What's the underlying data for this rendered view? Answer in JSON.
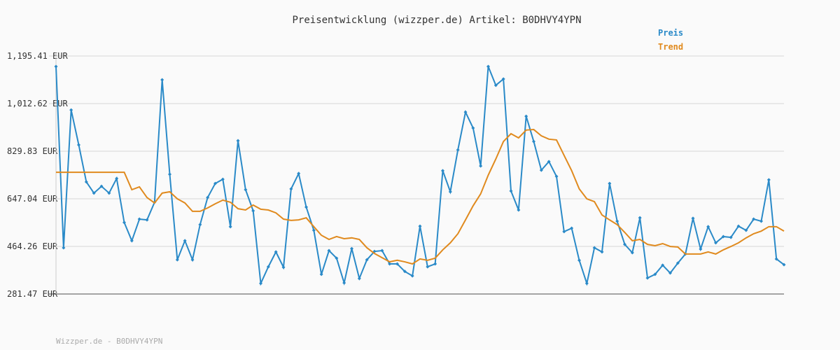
{
  "chart_data": {
    "type": "line",
    "title": "Preisentwicklung (wizzper.de) Artikel: B0DHVY4YPN",
    "footer": "Wizzper.de - B0DHVY4YPN",
    "legend": "top-right",
    "grid": true,
    "ylim": [
      281.47,
      1195.41
    ],
    "yticks": [
      {
        "value": 281.47,
        "label": "281.47 EUR"
      },
      {
        "value": 464.26,
        "label": "464.26 EUR"
      },
      {
        "value": 647.04,
        "label": "647.04 EUR"
      },
      {
        "value": 829.83,
        "label": "829.83 EUR"
      },
      {
        "value": 1012.62,
        "label": "1,012.62 EUR"
      },
      {
        "value": 1195.41,
        "label": "1,195.41 EUR"
      }
    ],
    "series": [
      {
        "name": "Preis",
        "color": "#2a8ac8",
        "markers": true,
        "values": [
          1155,
          459,
          988,
          854,
          712,
          669,
          695,
          669,
          725,
          556,
          486,
          569,
          566,
          634,
          1104,
          741,
          413,
          486,
          413,
          548,
          652,
          706,
          722,
          540,
          870,
          682,
          601,
          322,
          386,
          443,
          384,
          685,
          744,
          615,
          526,
          357,
          448,
          419,
          324,
          456,
          341,
          413,
          445,
          448,
          397,
          397,
          368,
          351,
          542,
          386,
          397,
          755,
          674,
          835,
          980,
          919,
          773,
          1155,
          1083,
          1107,
          677,
          604,
          964,
          867,
          757,
          790,
          733,
          521,
          534,
          411,
          322,
          459,
          443,
          706,
          561,
          472,
          440,
          574,
          343,
          357,
          392,
          362,
          400,
          435,
          572,
          454,
          540,
          478,
          502,
          499,
          542,
          526,
          569,
          561,
          720,
          416,
          394
        ]
      },
      {
        "name": "Trend",
        "color": "#e08a1e",
        "markers": false,
        "values": [
          749,
          749,
          749,
          749,
          749,
          749,
          749,
          749,
          749,
          749,
          682,
          693,
          652,
          631,
          669,
          674,
          647,
          631,
          599,
          599,
          612,
          628,
          642,
          634,
          609,
          604,
          623,
          607,
          604,
          593,
          569,
          564,
          566,
          574,
          540,
          507,
          491,
          502,
          494,
          497,
          491,
          459,
          437,
          421,
          405,
          411,
          405,
          397,
          416,
          411,
          419,
          451,
          478,
          513,
          566,
          620,
          666,
          738,
          800,
          867,
          897,
          881,
          911,
          913,
          889,
          876,
          873,
          814,
          755,
          685,
          647,
          636,
          585,
          566,
          548,
          518,
          486,
          491,
          472,
          467,
          475,
          464,
          462,
          435,
          435,
          435,
          443,
          435,
          451,
          464,
          478,
          497,
          513,
          523,
          540,
          540,
          523
        ]
      }
    ]
  }
}
